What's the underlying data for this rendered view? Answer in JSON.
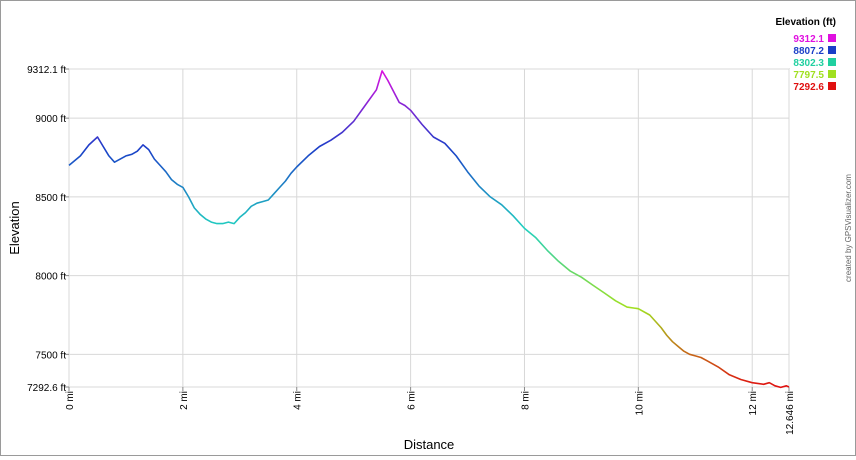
{
  "chart_data": {
    "type": "line",
    "title": "",
    "xlabel": "Distance",
    "ylabel": "Elevation",
    "xlim": [
      0,
      12.646
    ],
    "ylim": [
      7292.6,
      9312.1
    ],
    "grid": true,
    "x_ticks": [
      {
        "value": 0,
        "label": "0 mi"
      },
      {
        "value": 2,
        "label": "2 mi"
      },
      {
        "value": 4,
        "label": "4 mi"
      },
      {
        "value": 6,
        "label": "6 mi"
      },
      {
        "value": 8,
        "label": "8 mi"
      },
      {
        "value": 10,
        "label": "10 mi"
      },
      {
        "value": 12,
        "label": "12 mi"
      },
      {
        "value": 12.646,
        "label": "12.646 mi"
      }
    ],
    "y_ticks": [
      {
        "value": 9312.1,
        "label": "9312.1 ft"
      },
      {
        "value": 9000,
        "label": "9000 ft"
      },
      {
        "value": 8500,
        "label": "8500 ft"
      },
      {
        "value": 8000,
        "label": "8000 ft"
      },
      {
        "value": 7500,
        "label": "7500 ft"
      },
      {
        "value": 7292.6,
        "label": "7292.6 ft"
      }
    ],
    "legend": {
      "title": "Elevation (ft)",
      "position": "top-right",
      "entries": [
        {
          "label": "9312.1",
          "color": "#e010e0"
        },
        {
          "label": "8807.2",
          "color": "#1a3ec8"
        },
        {
          "label": "8302.3",
          "color": "#20d0a0"
        },
        {
          "label": "7797.5",
          "color": "#a0e020"
        },
        {
          "label": "7292.6",
          "color": "#e01010"
        }
      ]
    },
    "credit": "created by GPSVisualizer.com",
    "series": [
      {
        "x": [
          0,
          0.2,
          0.35,
          0.5,
          0.6,
          0.7,
          0.8,
          0.9,
          1.0,
          1.1,
          1.2,
          1.3,
          1.4,
          1.5,
          1.6,
          1.7,
          1.8,
          1.9,
          2.0,
          2.1,
          2.2,
          2.3,
          2.4,
          2.5,
          2.6,
          2.7,
          2.8,
          2.9,
          3.0,
          3.1,
          3.2,
          3.3,
          3.4,
          3.5,
          3.6,
          3.7,
          3.8,
          3.9,
          4.0,
          4.2,
          4.4,
          4.6,
          4.8,
          5.0,
          5.2,
          5.4,
          5.5,
          5.6,
          5.7,
          5.8,
          5.9,
          6.0,
          6.2,
          6.4,
          6.6,
          6.8,
          7.0,
          7.2,
          7.4,
          7.6,
          7.8,
          8.0,
          8.2,
          8.4,
          8.6,
          8.8,
          9.0,
          9.2,
          9.4,
          9.6,
          9.8,
          10.0,
          10.2,
          10.4,
          10.5,
          10.6,
          10.7,
          10.8,
          10.9,
          11.0,
          11.1,
          11.2,
          11.4,
          11.6,
          11.8,
          12.0,
          12.2,
          12.3,
          12.4,
          12.5,
          12.6,
          12.646
        ],
        "y": [
          8700,
          8760,
          8830,
          8880,
          8820,
          8760,
          8720,
          8740,
          8760,
          8770,
          8790,
          8830,
          8800,
          8740,
          8700,
          8660,
          8610,
          8580,
          8560,
          8500,
          8430,
          8390,
          8360,
          8340,
          8330,
          8330,
          8340,
          8330,
          8370,
          8400,
          8440,
          8460,
          8470,
          8480,
          8520,
          8560,
          8600,
          8650,
          8690,
          8760,
          8820,
          8860,
          8910,
          8980,
          9080,
          9180,
          9300,
          9240,
          9170,
          9100,
          9080,
          9050,
          8960,
          8880,
          8840,
          8760,
          8660,
          8570,
          8500,
          8450,
          8380,
          8300,
          8240,
          8160,
          8090,
          8030,
          7990,
          7940,
          7890,
          7840,
          7800,
          7790,
          7750,
          7670,
          7620,
          7580,
          7550,
          7520,
          7500,
          7490,
          7480,
          7460,
          7420,
          7370,
          7340,
          7320,
          7310,
          7320,
          7300,
          7290,
          7300,
          7292.6
        ]
      }
    ]
  }
}
